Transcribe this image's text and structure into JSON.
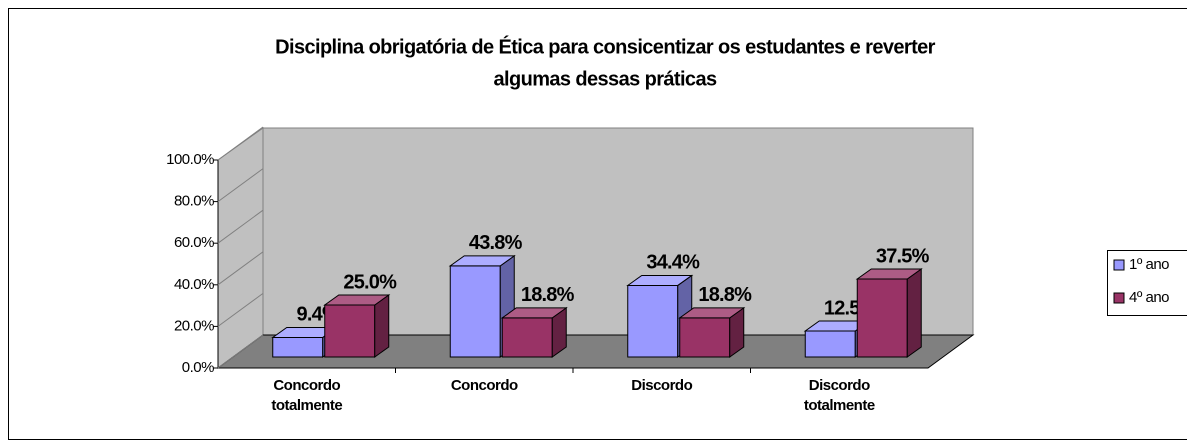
{
  "chart_data": {
    "type": "bar3d",
    "title": [
      "Disciplina obrigatória de Ética para consicentizar os estudantes e reverter",
      "algumas dessas práticas"
    ],
    "categories": [
      "Concordo totalmente",
      "Concordo",
      "Discordo",
      "Discordo totalmente"
    ],
    "series": [
      {
        "name": "1º ano",
        "color": "#9999ff",
        "values": [
          9.4,
          43.8,
          34.4,
          12.5
        ],
        "value_labels": [
          "9.4%",
          "43.8%",
          "34.4%",
          "12.5%"
        ]
      },
      {
        "name": "4º ano",
        "color": "#993366",
        "values": [
          25.0,
          18.8,
          18.8,
          37.5
        ],
        "value_labels": [
          "25.0%",
          "18.8%",
          "18.8%",
          "37.5%"
        ]
      }
    ],
    "ylim": [
      0,
      100
    ],
    "yticks": [
      {
        "value": 0,
        "label": "0.0%"
      },
      {
        "value": 20,
        "label": "20.0%"
      },
      {
        "value": 40,
        "label": "40.0%"
      },
      {
        "value": 60,
        "label": "60.0%"
      },
      {
        "value": 80,
        "label": "80.0%"
      },
      {
        "value": 100,
        "label": "100.0%"
      }
    ],
    "grid": false,
    "legend": "right"
  }
}
